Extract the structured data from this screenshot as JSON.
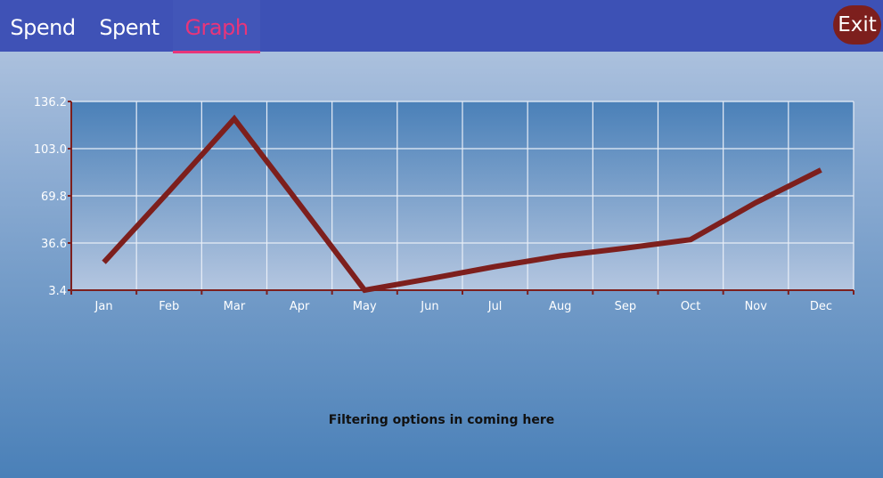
{
  "tabs": [
    {
      "label": "Spend",
      "active": false
    },
    {
      "label": "Spent",
      "active": false
    },
    {
      "label": "Graph",
      "active": true
    }
  ],
  "exit_label": "Exit",
  "filter_note": "Filtering options in coming here",
  "colors": {
    "header": "#3d51b5",
    "active_tab": "#e8357a",
    "line": "#7d1f1d",
    "exit_button": "#7d1f1d"
  },
  "chart_data": {
    "type": "line",
    "categories": [
      "Jan",
      "Feb",
      "Mar",
      "Apr",
      "May",
      "Jun",
      "Jul",
      "Aug",
      "Sep",
      "Oct",
      "Nov",
      "Dec"
    ],
    "series": [
      {
        "values": [
          23.0,
          73.0,
          124.0,
          64.0,
          3.4,
          11.5,
          20.0,
          27.5,
          33.0,
          39.0,
          65.0,
          88.0
        ]
      }
    ],
    "y_ticks": [
      "136.2",
      "103.0",
      "69.8",
      "36.6",
      "3.4"
    ],
    "ylim": [
      3.4,
      136.2
    ],
    "grid": true,
    "title": "",
    "xlabel": "",
    "ylabel": ""
  }
}
